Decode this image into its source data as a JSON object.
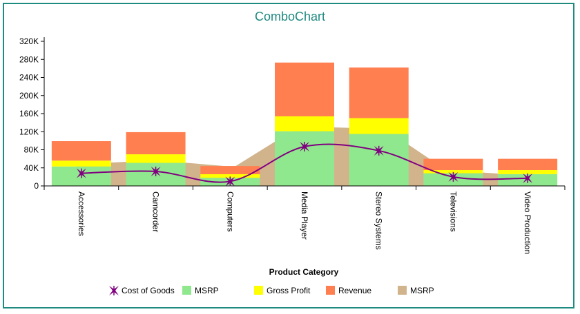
{
  "chart_data": {
    "type": "combo",
    "title": "ComboChart",
    "xlabel": "Product Category",
    "ylabel": "",
    "ylim": [
      0,
      320000
    ],
    "yticks": [
      0,
      40000,
      80000,
      120000,
      160000,
      200000,
      240000,
      280000,
      320000
    ],
    "ytick_labels": [
      "0",
      "40K",
      "80K",
      "120K",
      "160K",
      "200K",
      "240K",
      "280K",
      "320K"
    ],
    "categories": [
      "Accessories",
      "Camcorder",
      "Computers",
      "Media Player",
      "Stereo Systems",
      "Televisions",
      "Video Production"
    ],
    "series": [
      {
        "name": "Cost of Goods",
        "kind": "line",
        "smooth": true,
        "marker": "asterisk",
        "color": "#800080",
        "values": [
          28000,
          32000,
          10000,
          87000,
          78000,
          20000,
          17000
        ]
      },
      {
        "name": "MSRP",
        "kind": "stacked-bar",
        "color": "#90e88e",
        "values": [
          43000,
          51000,
          18000,
          121000,
          115000,
          28000,
          26000
        ]
      },
      {
        "name": "Gross Profit",
        "kind": "stacked-bar",
        "color": "#ffff00",
        "values": [
          13000,
          19000,
          8000,
          33000,
          35000,
          7000,
          9000
        ]
      },
      {
        "name": "Revenue",
        "kind": "stacked-bar",
        "color": "#ff7f50",
        "values": [
          43000,
          49000,
          18000,
          119000,
          112000,
          25000,
          25000
        ]
      },
      {
        "name": "MSRP",
        "kind": "area",
        "color": "#d2b48c",
        "values": [
          49000,
          56000,
          44000,
          131000,
          127000,
          33000,
          24000
        ]
      }
    ],
    "legend_position": "bottom",
    "grid": false
  }
}
